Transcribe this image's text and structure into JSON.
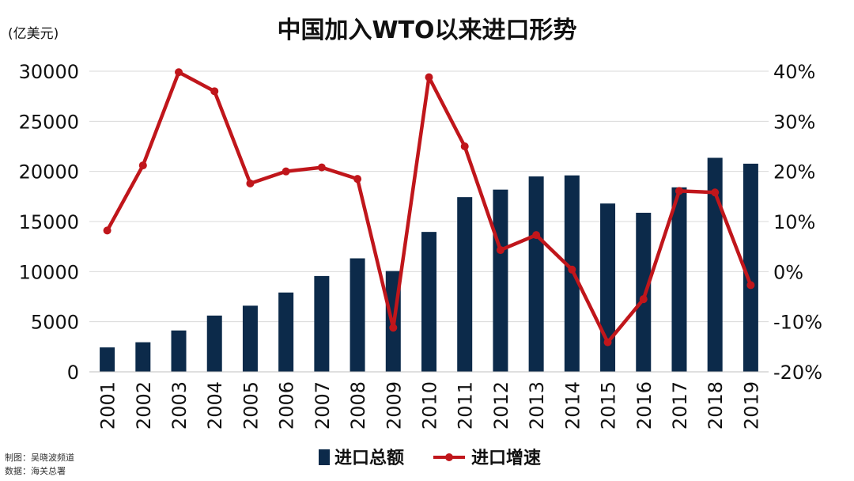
{
  "chart_data": {
    "type": "bar+line",
    "title": "中国加入WTO以来进口形势",
    "y_left_unit": "(亿美元)",
    "categories": [
      "2001",
      "2002",
      "2003",
      "2004",
      "2005",
      "2006",
      "2007",
      "2008",
      "2009",
      "2010",
      "2011",
      "2012",
      "2013",
      "2014",
      "2015",
      "2016",
      "2017",
      "2018",
      "2019"
    ],
    "series": [
      {
        "name": "进口总额",
        "type": "bar",
        "axis": "left",
        "color": "#0c2a4a",
        "values": [
          2436,
          2952,
          4128,
          5614,
          6600,
          7915,
          9561,
          11326,
          10059,
          13962,
          17435,
          18184,
          19500,
          19603,
          16796,
          15874,
          18410,
          21357,
          20771
        ]
      },
      {
        "name": "进口增速",
        "type": "line",
        "axis": "right",
        "color": "#c0161b",
        "values": [
          8.2,
          21.2,
          39.8,
          36.0,
          17.6,
          20.0,
          20.8,
          18.5,
          -11.2,
          38.8,
          25.0,
          4.3,
          7.3,
          0.4,
          -14.1,
          -5.5,
          16.1,
          15.8,
          -2.7
        ]
      }
    ],
    "y_left": {
      "min": 0,
      "max": 30000,
      "ticks": [
        "0",
        "5000",
        "10000",
        "15000",
        "20000",
        "25000",
        "30000"
      ]
    },
    "y_right": {
      "min": -20,
      "max": 40,
      "ticks": [
        "-20%",
        "-10%",
        "0%",
        "10%",
        "20%",
        "30%",
        "40%"
      ]
    },
    "grid": true,
    "legend_position": "bottom"
  },
  "credits": {
    "line1": "制图：吴晓波频道",
    "line2": "数据：海关总署"
  }
}
